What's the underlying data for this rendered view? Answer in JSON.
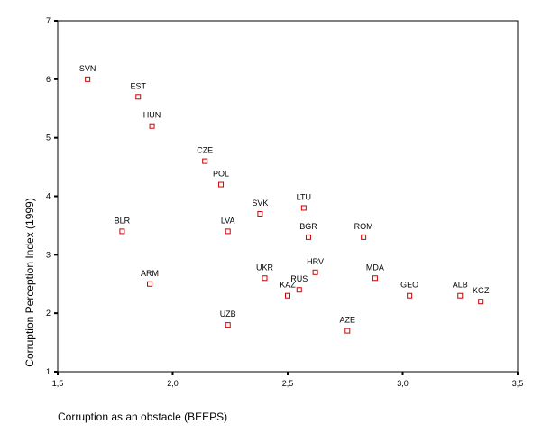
{
  "chart_data": {
    "type": "scatter",
    "title": "",
    "xlabel": "Corruption as an obstacle (BEEPS)",
    "ylabel": "Corruption Perception Index (1999)",
    "xlim": [
      1.5,
      3.5
    ],
    "ylim": [
      1,
      7
    ],
    "xticks": [
      "1,5",
      "2,0",
      "2,5",
      "3,0",
      "3,5"
    ],
    "yticks": [
      "1",
      "2",
      "3",
      "4",
      "5",
      "6",
      "7"
    ],
    "grid": false,
    "marker_color": "#cc0000",
    "points": [
      {
        "label": "SVN",
        "x": 1.63,
        "y": 6.0
      },
      {
        "label": "EST",
        "x": 1.85,
        "y": 5.7
      },
      {
        "label": "HUN",
        "x": 1.91,
        "y": 5.2
      },
      {
        "label": "CZE",
        "x": 2.14,
        "y": 4.6
      },
      {
        "label": "POL",
        "x": 2.21,
        "y": 4.2
      },
      {
        "label": "SVK",
        "x": 2.38,
        "y": 3.7
      },
      {
        "label": "LTU",
        "x": 2.57,
        "y": 3.8
      },
      {
        "label": "BLR",
        "x": 1.78,
        "y": 3.4
      },
      {
        "label": "LVA",
        "x": 2.24,
        "y": 3.4
      },
      {
        "label": "BGR",
        "x": 2.59,
        "y": 3.3
      },
      {
        "label": "ROM",
        "x": 2.83,
        "y": 3.3
      },
      {
        "label": "ARM",
        "x": 1.9,
        "y": 2.5
      },
      {
        "label": "UKR",
        "x": 2.4,
        "y": 2.6
      },
      {
        "label": "HRV",
        "x": 2.62,
        "y": 2.7
      },
      {
        "label": "MDA",
        "x": 2.88,
        "y": 2.6
      },
      {
        "label": "RUS",
        "x": 2.55,
        "y": 2.4
      },
      {
        "label": "KAZ",
        "x": 2.5,
        "y": 2.3
      },
      {
        "label": "GEO",
        "x": 3.03,
        "y": 2.3
      },
      {
        "label": "ALB",
        "x": 3.25,
        "y": 2.3
      },
      {
        "label": "KGZ",
        "x": 3.34,
        "y": 2.2
      },
      {
        "label": "UZB",
        "x": 2.24,
        "y": 1.8
      },
      {
        "label": "AZE",
        "x": 2.76,
        "y": 1.7
      }
    ]
  }
}
